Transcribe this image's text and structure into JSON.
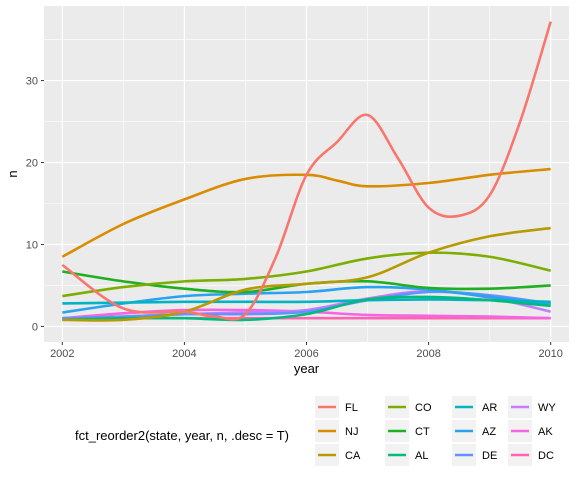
{
  "chart_data": {
    "type": "line",
    "title": "",
    "xlabel": "year",
    "ylabel": "n",
    "xlim": [
      2001.7,
      2010.3
    ],
    "ylim": [
      -1.9,
      39.1
    ],
    "x_ticks": [
      2002,
      2004,
      2006,
      2008,
      2010
    ],
    "x_tick_labels": [
      "2002",
      "2004",
      "2006",
      "2008",
      "2010"
    ],
    "y_ticks": [
      0,
      10,
      20,
      30
    ],
    "y_tick_labels": [
      "0",
      "10",
      "20",
      "30"
    ],
    "grid": true,
    "legend": {
      "title": "fct_reorder2(state, year, n, .desc = T)",
      "placement": "bottom"
    },
    "series": [
      {
        "name": "FL",
        "color": "#F8766D",
        "x": [
          2002,
          2003,
          2004,
          2004.5,
          2005,
          2005.5,
          2006,
          2006.5,
          2007,
          2007.5,
          2008,
          2008.5,
          2009,
          2009.5,
          2010
        ],
        "values": [
          7.5,
          2.2,
          1.8,
          1.2,
          1.5,
          8.5,
          18.5,
          22.5,
          25.8,
          20.5,
          14.5,
          13.5,
          16.0,
          25.0,
          37.2
        ]
      },
      {
        "name": "NJ",
        "color": "#D98C00",
        "x": [
          2002,
          2003,
          2004,
          2005,
          2006,
          2006.5,
          2007,
          2008,
          2009,
          2010
        ],
        "values": [
          8.5,
          12.5,
          15.5,
          18.0,
          18.5,
          17.8,
          17.1,
          17.5,
          18.5,
          19.2
        ]
      },
      {
        "name": "CA",
        "color": "#B59A00",
        "x": [
          2002,
          2003,
          2004,
          2005,
          2006,
          2007,
          2008,
          2009,
          2010
        ],
        "values": [
          0.8,
          0.8,
          1.8,
          4.5,
          5.2,
          6.0,
          9.0,
          11.0,
          12.0
        ]
      },
      {
        "name": "CO",
        "color": "#7CAE00",
        "x": [
          2002,
          2003,
          2004,
          2005,
          2006,
          2007,
          2008,
          2009,
          2010
        ],
        "values": [
          3.7,
          4.8,
          5.5,
          5.8,
          6.7,
          8.3,
          9.0,
          8.5,
          6.8
        ]
      },
      {
        "name": "CT",
        "color": "#1EB020",
        "x": [
          2002,
          2003,
          2004,
          2005,
          2006,
          2007,
          2008,
          2009,
          2010
        ],
        "values": [
          6.7,
          5.5,
          4.6,
          4.2,
          5.2,
          5.5,
          4.7,
          4.6,
          5.0
        ]
      },
      {
        "name": "AL",
        "color": "#00BA7E",
        "x": [
          2002,
          2003,
          2004,
          2005,
          2006,
          2007,
          2008,
          2009,
          2010
        ],
        "values": [
          0.8,
          1.0,
          1.0,
          0.8,
          1.5,
          3.3,
          3.6,
          3.2,
          2.5
        ]
      },
      {
        "name": "AR",
        "color": "#00B4C4",
        "x": [
          2002,
          2003,
          2004,
          2005,
          2006,
          2007,
          2008,
          2009,
          2010
        ],
        "values": [
          2.8,
          2.9,
          3.0,
          3.0,
          3.0,
          3.2,
          3.3,
          3.2,
          3.0
        ]
      },
      {
        "name": "AZ",
        "color": "#29A3F0",
        "x": [
          2002,
          2003,
          2004,
          2005,
          2006,
          2007,
          2008,
          2009,
          2010
        ],
        "values": [
          1.7,
          2.8,
          3.7,
          4.0,
          4.2,
          4.8,
          4.5,
          3.6,
          2.7
        ]
      },
      {
        "name": "DE",
        "color": "#6493FF",
        "x": [
          2002,
          2003,
          2004,
          2005,
          2006,
          2007,
          2008,
          2009,
          2010
        ],
        "values": [
          1.0,
          1.2,
          1.5,
          1.5,
          1.8,
          3.2,
          4.2,
          3.8,
          2.8
        ]
      },
      {
        "name": "WY",
        "color": "#C77CFF",
        "x": [
          2002,
          2003,
          2004,
          2005,
          2006,
          2007,
          2008,
          2009,
          2010
        ],
        "values": [
          1.0,
          1.2,
          1.5,
          1.7,
          2.0,
          3.4,
          4.3,
          3.5,
          1.8
        ]
      },
      {
        "name": "AK",
        "color": "#F564E3",
        "x": [
          2002,
          2003,
          2004,
          2005,
          2006,
          2007,
          2008,
          2009,
          2010
        ],
        "values": [
          1.0,
          1.6,
          2.0,
          2.0,
          1.8,
          1.4,
          1.3,
          1.2,
          1.0
        ]
      },
      {
        "name": "DC",
        "color": "#FF64B0",
        "x": [
          2002,
          2003,
          2004,
          2005,
          2006,
          2007,
          2008,
          2009,
          2010
        ],
        "values": [
          1.0,
          1.0,
          1.0,
          1.0,
          1.0,
          1.0,
          1.0,
          1.0,
          1.0
        ]
      }
    ]
  }
}
